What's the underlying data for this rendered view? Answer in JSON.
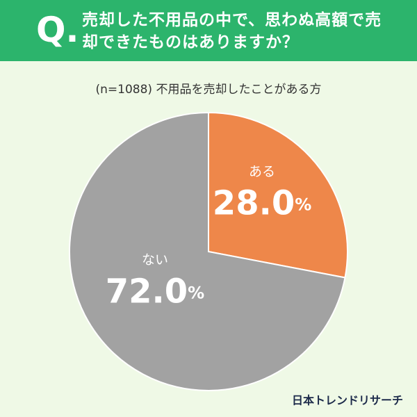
{
  "question_label": "Q.",
  "chart_data": {
    "type": "pie",
    "title": "売却した不用品の中で、思わぬ高額で売却できたものはありますか？",
    "subtitle": "(n=1088) 不用品を売却したことがある方",
    "categories": [
      "ある",
      "ない"
    ],
    "values": [
      28.0,
      72.0
    ],
    "value_labels": [
      "28.0%",
      "72.0%"
    ],
    "colors": [
      "#ee874a",
      "#a2a2a2"
    ]
  },
  "source": "日本トレンドリサーチ"
}
